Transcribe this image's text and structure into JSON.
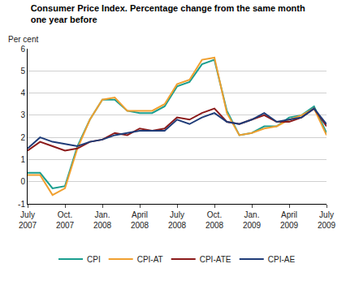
{
  "chart_data": {
    "type": "line",
    "title": "Consumer Price Index. Percentage change from the same month\none year before",
    "ylabel": "Per cent",
    "categories": [
      "July 2007",
      null,
      null,
      "Oct. 2007",
      null,
      null,
      "Jan. 2008",
      null,
      null,
      "April 2008",
      null,
      null,
      "July 2008",
      null,
      null,
      "Oct. 2008",
      null,
      null,
      "Jan. 2009",
      null,
      null,
      "April 2009",
      null,
      null,
      "July 2009"
    ],
    "series": [
      {
        "name": "CPI",
        "color": "#1a9e8f",
        "values": [
          0.4,
          0.4,
          -0.3,
          -0.2,
          1.6,
          2.8,
          3.7,
          3.7,
          3.2,
          3.1,
          3.1,
          3.4,
          4.3,
          4.5,
          5.3,
          5.5,
          3.2,
          2.1,
          2.2,
          2.5,
          2.5,
          2.9,
          3.0,
          3.4,
          2.2
        ]
      },
      {
        "name": "CPI-AT",
        "color": "#f0a030",
        "values": [
          0.3,
          0.3,
          -0.6,
          -0.3,
          1.5,
          2.8,
          3.7,
          3.8,
          3.2,
          3.2,
          3.2,
          3.5,
          4.4,
          4.6,
          5.5,
          5.6,
          3.1,
          2.1,
          2.2,
          2.4,
          2.5,
          2.8,
          3.0,
          3.3,
          2.1
        ]
      },
      {
        "name": "CPI-ATE",
        "color": "#8b1a1a",
        "values": [
          1.4,
          1.8,
          1.6,
          1.4,
          1.5,
          1.8,
          1.9,
          2.2,
          2.1,
          2.4,
          2.3,
          2.4,
          2.9,
          2.8,
          3.1,
          3.3,
          2.7,
          2.6,
          2.8,
          3.0,
          2.7,
          2.7,
          2.9,
          3.3,
          2.5
        ]
      },
      {
        "name": "CPI-AE",
        "color": "#1f3c78",
        "values": [
          1.5,
          2.0,
          1.8,
          1.7,
          1.6,
          1.8,
          1.9,
          2.1,
          2.2,
          2.3,
          2.3,
          2.3,
          2.8,
          2.6,
          2.9,
          3.1,
          2.7,
          2.6,
          2.8,
          3.1,
          2.7,
          2.8,
          2.9,
          3.3,
          2.6
        ]
      }
    ],
    "ylim": [
      -1,
      6
    ],
    "yticks": [
      -1,
      0,
      1,
      2,
      3,
      4,
      5,
      6
    ],
    "grid": true,
    "legend": "bottom"
  }
}
